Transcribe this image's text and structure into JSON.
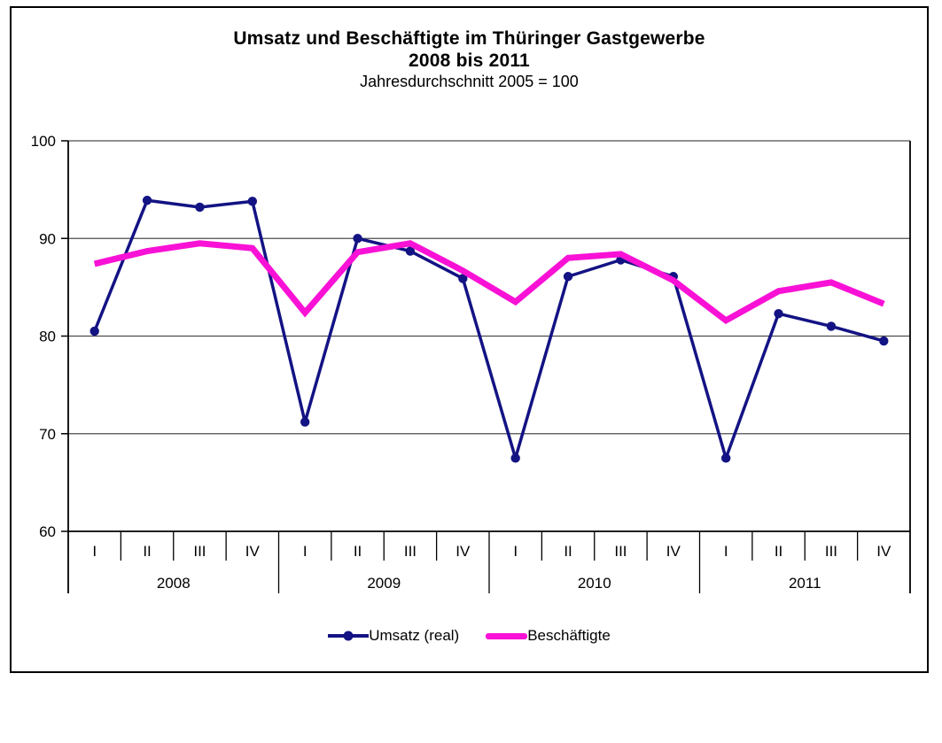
{
  "title": {
    "line1": "Umsatz und Beschäftigte im Thüringer Gastgewerbe",
    "line2": "2008 bis 2011",
    "subtitle": "Jahresdurchschnitt 2005 = 100"
  },
  "legend": {
    "umsatz_label": "Umsatz (real)",
    "beschaeftigte_label": "Beschäftigte"
  },
  "colors": {
    "umsatz": "#131384",
    "beschaeftigte": "#F911D6",
    "gridline": "#4d4d4d",
    "axis": "#000000"
  },
  "chart_data": {
    "type": "line",
    "title": "Umsatz und Beschäftigte im Thüringer Gastgewerbe 2008 bis 2011",
    "subtitle": "Jahresdurchschnitt 2005 = 100",
    "years": [
      "2008",
      "2009",
      "2010",
      "2011"
    ],
    "quarters": [
      "I",
      "II",
      "III",
      "IV"
    ],
    "yticks": [
      100,
      90,
      80,
      70,
      60
    ],
    "ylim": [
      60,
      100
    ],
    "grid": "horizontal",
    "legend_position": "bottom",
    "series": [
      {
        "name": "Umsatz (real)",
        "color": "#131384",
        "marker": "circle",
        "line_width": 3.5,
        "values": [
          80.5,
          93.9,
          93.2,
          93.8,
          71.2,
          90.0,
          88.7,
          85.9,
          67.5,
          86.1,
          87.8,
          86.1,
          67.5,
          82.3,
          81.0,
          79.5
        ]
      },
      {
        "name": "Beschäftigte",
        "color": "#F911D6",
        "marker": "none",
        "line_width": 7,
        "values": [
          87.4,
          88.7,
          89.5,
          89.0,
          82.4,
          88.6,
          89.5,
          86.7,
          83.5,
          88.0,
          88.4,
          85.7,
          81.6,
          84.6,
          85.5,
          83.3
        ]
      }
    ]
  }
}
